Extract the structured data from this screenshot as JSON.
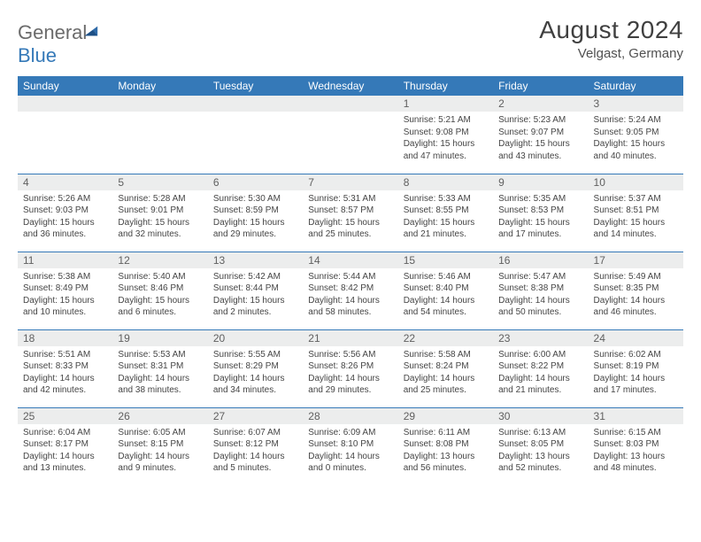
{
  "logo": {
    "general": "General",
    "blue": "Blue"
  },
  "header": {
    "title": "August 2024",
    "location": "Velgast, Germany"
  },
  "colors": {
    "header_bg": "#3579b8",
    "header_text": "#ffffff",
    "daynum_bg": "#eceded",
    "border": "#3579b8",
    "body_text": "#454545"
  },
  "weekdays": [
    "Sunday",
    "Monday",
    "Tuesday",
    "Wednesday",
    "Thursday",
    "Friday",
    "Saturday"
  ],
  "weeks": [
    [
      null,
      null,
      null,
      null,
      {
        "n": "1",
        "sr": "5:21 AM",
        "ss": "9:08 PM",
        "dl": "15 hours and 47 minutes."
      },
      {
        "n": "2",
        "sr": "5:23 AM",
        "ss": "9:07 PM",
        "dl": "15 hours and 43 minutes."
      },
      {
        "n": "3",
        "sr": "5:24 AM",
        "ss": "9:05 PM",
        "dl": "15 hours and 40 minutes."
      }
    ],
    [
      {
        "n": "4",
        "sr": "5:26 AM",
        "ss": "9:03 PM",
        "dl": "15 hours and 36 minutes."
      },
      {
        "n": "5",
        "sr": "5:28 AM",
        "ss": "9:01 PM",
        "dl": "15 hours and 32 minutes."
      },
      {
        "n": "6",
        "sr": "5:30 AM",
        "ss": "8:59 PM",
        "dl": "15 hours and 29 minutes."
      },
      {
        "n": "7",
        "sr": "5:31 AM",
        "ss": "8:57 PM",
        "dl": "15 hours and 25 minutes."
      },
      {
        "n": "8",
        "sr": "5:33 AM",
        "ss": "8:55 PM",
        "dl": "15 hours and 21 minutes."
      },
      {
        "n": "9",
        "sr": "5:35 AM",
        "ss": "8:53 PM",
        "dl": "15 hours and 17 minutes."
      },
      {
        "n": "10",
        "sr": "5:37 AM",
        "ss": "8:51 PM",
        "dl": "15 hours and 14 minutes."
      }
    ],
    [
      {
        "n": "11",
        "sr": "5:38 AM",
        "ss": "8:49 PM",
        "dl": "15 hours and 10 minutes."
      },
      {
        "n": "12",
        "sr": "5:40 AM",
        "ss": "8:46 PM",
        "dl": "15 hours and 6 minutes."
      },
      {
        "n": "13",
        "sr": "5:42 AM",
        "ss": "8:44 PM",
        "dl": "15 hours and 2 minutes."
      },
      {
        "n": "14",
        "sr": "5:44 AM",
        "ss": "8:42 PM",
        "dl": "14 hours and 58 minutes."
      },
      {
        "n": "15",
        "sr": "5:46 AM",
        "ss": "8:40 PM",
        "dl": "14 hours and 54 minutes."
      },
      {
        "n": "16",
        "sr": "5:47 AM",
        "ss": "8:38 PM",
        "dl": "14 hours and 50 minutes."
      },
      {
        "n": "17",
        "sr": "5:49 AM",
        "ss": "8:35 PM",
        "dl": "14 hours and 46 minutes."
      }
    ],
    [
      {
        "n": "18",
        "sr": "5:51 AM",
        "ss": "8:33 PM",
        "dl": "14 hours and 42 minutes."
      },
      {
        "n": "19",
        "sr": "5:53 AM",
        "ss": "8:31 PM",
        "dl": "14 hours and 38 minutes."
      },
      {
        "n": "20",
        "sr": "5:55 AM",
        "ss": "8:29 PM",
        "dl": "14 hours and 34 minutes."
      },
      {
        "n": "21",
        "sr": "5:56 AM",
        "ss": "8:26 PM",
        "dl": "14 hours and 29 minutes."
      },
      {
        "n": "22",
        "sr": "5:58 AM",
        "ss": "8:24 PM",
        "dl": "14 hours and 25 minutes."
      },
      {
        "n": "23",
        "sr": "6:00 AM",
        "ss": "8:22 PM",
        "dl": "14 hours and 21 minutes."
      },
      {
        "n": "24",
        "sr": "6:02 AM",
        "ss": "8:19 PM",
        "dl": "14 hours and 17 minutes."
      }
    ],
    [
      {
        "n": "25",
        "sr": "6:04 AM",
        "ss": "8:17 PM",
        "dl": "14 hours and 13 minutes."
      },
      {
        "n": "26",
        "sr": "6:05 AM",
        "ss": "8:15 PM",
        "dl": "14 hours and 9 minutes."
      },
      {
        "n": "27",
        "sr": "6:07 AM",
        "ss": "8:12 PM",
        "dl": "14 hours and 5 minutes."
      },
      {
        "n": "28",
        "sr": "6:09 AM",
        "ss": "8:10 PM",
        "dl": "14 hours and 0 minutes."
      },
      {
        "n": "29",
        "sr": "6:11 AM",
        "ss": "8:08 PM",
        "dl": "13 hours and 56 minutes."
      },
      {
        "n": "30",
        "sr": "6:13 AM",
        "ss": "8:05 PM",
        "dl": "13 hours and 52 minutes."
      },
      {
        "n": "31",
        "sr": "6:15 AM",
        "ss": "8:03 PM",
        "dl": "13 hours and 48 minutes."
      }
    ]
  ],
  "labels": {
    "sunrise": "Sunrise:",
    "sunset": "Sunset:",
    "daylight": "Daylight:"
  }
}
